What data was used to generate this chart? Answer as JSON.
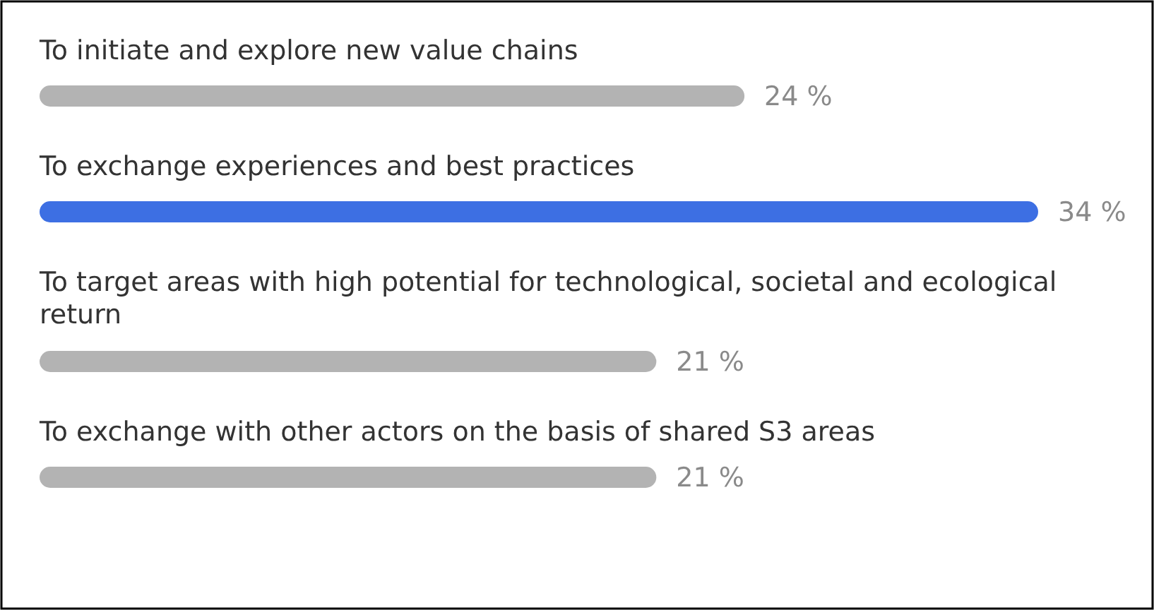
{
  "chart_data": {
    "type": "bar",
    "orientation": "horizontal",
    "categories": [
      "To initiate and explore new value chains",
      "To exchange experiences and best practices",
      "To target areas with high potential for technological, societal and ecological return",
      "To exchange with other actors on the basis of shared S3 areas"
    ],
    "values": [
      24,
      34,
      21,
      21
    ],
    "colors": [
      "#b3b3b3",
      "#3d6fe3",
      "#b3b3b3",
      "#b3b3b3"
    ],
    "value_labels": [
      "24 %",
      "34 %",
      "21 %",
      "21 %"
    ]
  }
}
